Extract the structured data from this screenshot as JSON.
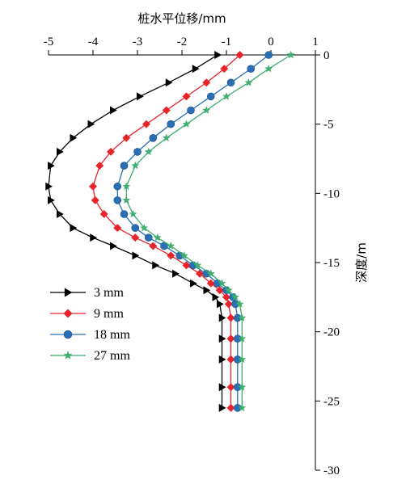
{
  "chart_data": {
    "type": "line",
    "xlabel": "桩水平位移/mm",
    "ylabel": "深度/m",
    "x_axis_position": "top",
    "y_axis_position": "right",
    "xlim": [
      -5,
      1
    ],
    "ylim": [
      0,
      -30
    ],
    "x_ticks": [
      -5,
      -4,
      -3,
      -2,
      -1,
      0,
      1
    ],
    "y_ticks": [
      0,
      -5,
      -10,
      -15,
      -20,
      -25,
      -30
    ],
    "x_tick_labels": [
      "-5",
      "-4",
      "-3",
      "-2",
      "-1",
      "0",
      "1"
    ],
    "y_tick_labels": [
      "0",
      "-5",
      "-10",
      "-15",
      "-20",
      "-25",
      "-30"
    ],
    "grid": false,
    "legend_position": "left-middle",
    "series": [
      {
        "name": "3 mm",
        "color": "#000000",
        "marker": "triangle-right",
        "x": [
          -1.2,
          -1.7,
          -2.3,
          -2.95,
          -3.55,
          -4.05,
          -4.45,
          -4.75,
          -4.95,
          -5.0,
          -4.95,
          -4.75,
          -4.45,
          -4.0,
          -3.55,
          -3.05,
          -2.6,
          -2.15,
          -1.75,
          -1.45,
          -1.25,
          -1.15,
          -1.1,
          -1.1,
          -1.1,
          -1.1,
          -1.1
        ],
        "y": [
          0,
          -1,
          -2,
          -3,
          -4,
          -5,
          -6,
          -7,
          -8,
          -9.5,
          -10.5,
          -11.5,
          -12.5,
          -13.2,
          -13.8,
          -14.5,
          -15.2,
          -15.8,
          -16.5,
          -17.0,
          -17.5,
          -18.0,
          -19.0,
          -20.5,
          -22.0,
          -24.0,
          -25.5
        ]
      },
      {
        "name": "9 mm",
        "color": "#e8232a",
        "marker": "diamond",
        "x": [
          -0.7,
          -1.05,
          -1.45,
          -1.9,
          -2.35,
          -2.8,
          -3.25,
          -3.6,
          -3.85,
          -4.0,
          -3.95,
          -3.75,
          -3.45,
          -3.05,
          -2.65,
          -2.25,
          -1.9,
          -1.6,
          -1.35,
          -1.15,
          -1.0,
          -0.95,
          -0.9,
          -0.9,
          -0.9,
          -0.9,
          -0.9
        ],
        "y": [
          0,
          -1,
          -2,
          -3,
          -4,
          -5,
          -6,
          -7,
          -8,
          -9.5,
          -10.5,
          -11.5,
          -12.5,
          -13.2,
          -13.8,
          -14.5,
          -15.2,
          -15.8,
          -16.5,
          -17.0,
          -17.5,
          -18.0,
          -19.0,
          -20.5,
          -22.0,
          -24.0,
          -25.5
        ]
      },
      {
        "name": "18 mm",
        "color": "#2a6fb4",
        "marker": "circle",
        "x": [
          -0.05,
          -0.45,
          -0.9,
          -1.35,
          -1.8,
          -2.25,
          -2.65,
          -3.0,
          -3.3,
          -3.45,
          -3.45,
          -3.3,
          -3.05,
          -2.75,
          -2.4,
          -2.05,
          -1.75,
          -1.45,
          -1.2,
          -1.0,
          -0.85,
          -0.8,
          -0.75,
          -0.75,
          -0.75,
          -0.75,
          -0.75
        ],
        "y": [
          0,
          -1,
          -2,
          -3,
          -4,
          -5,
          -6,
          -7,
          -8,
          -9.5,
          -10.5,
          -11.5,
          -12.5,
          -13.2,
          -13.8,
          -14.5,
          -15.2,
          -15.8,
          -16.5,
          -17.0,
          -17.5,
          -18.0,
          -19.0,
          -20.5,
          -22.0,
          -24.0,
          -25.5
        ]
      },
      {
        "name": "27 mm",
        "color": "#3fae6e",
        "marker": "star",
        "x": [
          0.45,
          -0.05,
          -0.5,
          -1.0,
          -1.45,
          -1.9,
          -2.35,
          -2.75,
          -3.05,
          -3.25,
          -3.25,
          -3.1,
          -2.85,
          -2.55,
          -2.25,
          -1.95,
          -1.65,
          -1.35,
          -1.1,
          -0.95,
          -0.8,
          -0.7,
          -0.65,
          -0.65,
          -0.65,
          -0.65,
          -0.65
        ],
        "y": [
          0,
          -1,
          -2,
          -3,
          -4,
          -5,
          -6,
          -7,
          -8,
          -9.5,
          -10.5,
          -11.5,
          -12.5,
          -13.2,
          -13.8,
          -14.5,
          -15.2,
          -15.8,
          -16.5,
          -17.0,
          -17.5,
          -18.0,
          -19.0,
          -20.5,
          -22.0,
          -24.0,
          -25.5
        ]
      }
    ]
  }
}
